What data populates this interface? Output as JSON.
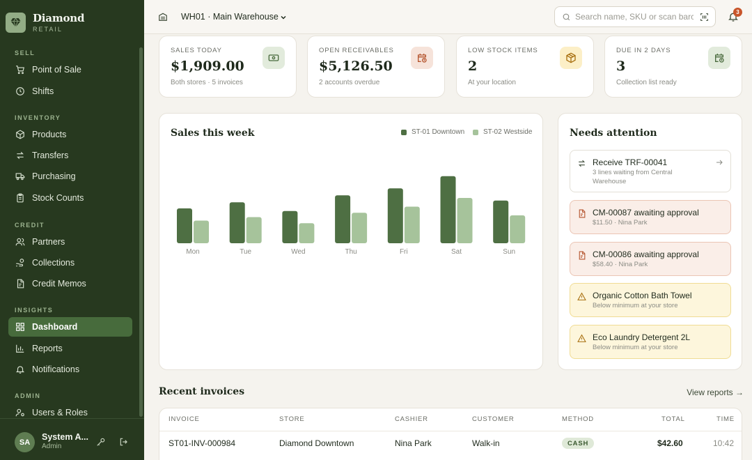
{
  "brand": {
    "name": "Diamond",
    "sub": "RETAIL"
  },
  "sidebar": {
    "sections": [
      {
        "title": "SELL",
        "items": [
          {
            "label": "Point of Sale",
            "icon": "cart-icon"
          },
          {
            "label": "Shifts",
            "icon": "clock-icon"
          }
        ]
      },
      {
        "title": "INVENTORY",
        "items": [
          {
            "label": "Products",
            "icon": "box-icon"
          },
          {
            "label": "Transfers",
            "icon": "transfer-icon"
          },
          {
            "label": "Purchasing",
            "icon": "truck-icon"
          },
          {
            "label": "Stock Counts",
            "icon": "clipboard-icon"
          }
        ]
      },
      {
        "title": "CREDIT",
        "items": [
          {
            "label": "Partners",
            "icon": "users-icon"
          },
          {
            "label": "Collections",
            "icon": "hand-coins-icon"
          },
          {
            "label": "Credit Memos",
            "icon": "file-icon"
          }
        ]
      },
      {
        "title": "INSIGHTS",
        "items": [
          {
            "label": "Dashboard",
            "icon": "grid-icon",
            "active": true
          },
          {
            "label": "Reports",
            "icon": "bar-chart-icon"
          },
          {
            "label": "Notifications",
            "icon": "bell-icon"
          }
        ]
      },
      {
        "title": "ADMIN",
        "items": [
          {
            "label": "Users & Roles",
            "icon": "user-cog-icon"
          }
        ]
      }
    ]
  },
  "user": {
    "initials": "SA",
    "name": "System A...",
    "role": "Admin"
  },
  "topbar": {
    "warehouse": "WH01 · Main Warehouse",
    "search_placeholder": "Search name, SKU or scan barcode",
    "notification_count": "3"
  },
  "stats": [
    {
      "label": "SALES TODAY",
      "value": "$1,909.00",
      "sub": "Both stores · 5 invoices",
      "icon": "cash-icon",
      "icon_bg": "#e2ebdc",
      "icon_color": "#4a6b3e"
    },
    {
      "label": "OPEN RECEIVABLES",
      "value": "$5,126.50",
      "sub": "2 accounts overdue",
      "icon": "calendar-clock-icon",
      "icon_bg": "#f6e3da",
      "icon_color": "#b4532c"
    },
    {
      "label": "LOW STOCK ITEMS",
      "value": "2",
      "sub": "At your location",
      "icon": "package-alert-icon",
      "icon_bg": "#fcefc7",
      "icon_color": "#a86f0f"
    },
    {
      "label": "DUE IN 2 DAYS",
      "value": "3",
      "sub": "Collection list ready",
      "icon": "calendar-clock-icon",
      "icon_bg": "#e2ebdc",
      "icon_color": "#4a6b3e"
    }
  ],
  "chart": {
    "title": "Sales this week",
    "legend": [
      {
        "name": "ST-01 Downtown",
        "color": "#4e6f43"
      },
      {
        "name": "ST-02 Westside",
        "color": "#a6c39b"
      }
    ]
  },
  "chart_data": {
    "type": "bar",
    "title": "Sales this week",
    "categories": [
      "Mon",
      "Tue",
      "Wed",
      "Thu",
      "Fri",
      "Sat",
      "Sun"
    ],
    "series": [
      {
        "name": "ST-01 Downtown",
        "values": [
          40,
          47,
          37,
          55,
          63,
          77,
          49
        ],
        "color": "#4e6f43"
      },
      {
        "name": "ST-02 Westside",
        "values": [
          26,
          30,
          23,
          35,
          42,
          52,
          32
        ],
        "color": "#a6c39b"
      }
    ],
    "ylim": [
      0,
      80
    ],
    "grid": false,
    "legend_position": "top-right"
  },
  "attention": {
    "title": "Needs attention",
    "items": [
      {
        "title": "Receive TRF-00041",
        "sub": "3 lines waiting from Central Warehouse",
        "kind": "neutral",
        "icon": "transfer-icon"
      },
      {
        "title": "CM-00087 awaiting approval",
        "sub": "$11.50 · Nina Park",
        "kind": "danger",
        "icon": "file-icon"
      },
      {
        "title": "CM-00086 awaiting approval",
        "sub": "$58.40 · Nina Park",
        "kind": "danger",
        "icon": "file-icon"
      },
      {
        "title": "Organic Cotton Bath Towel",
        "sub": "Below minimum at your store",
        "kind": "warning",
        "icon": "warning-icon"
      },
      {
        "title": "Eco Laundry Detergent 2L",
        "sub": "Below minimum at your store",
        "kind": "warning",
        "icon": "warning-icon"
      }
    ]
  },
  "invoices": {
    "title": "Recent invoices",
    "link": "View reports →",
    "columns": [
      "INVOICE",
      "STORE",
      "CASHIER",
      "CUSTOMER",
      "METHOD",
      "TOTAL",
      "TIME"
    ],
    "rows": [
      {
        "invoice": "ST01-INV-000984",
        "store": "Diamond Downtown",
        "cashier": "Nina Park",
        "customer": "Walk-in",
        "method": "CASH",
        "total": "$42.60",
        "time": "10:42"
      }
    ]
  }
}
